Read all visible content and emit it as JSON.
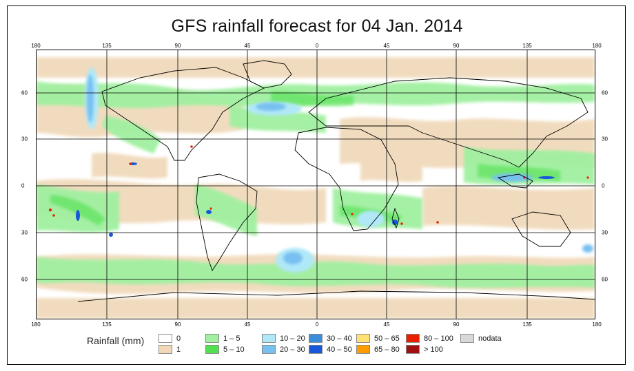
{
  "title": "GFS rainfall forecast for 04 Jan. 2014",
  "axes": {
    "lon_top": [
      "180",
      "135",
      "90",
      "45",
      "0",
      "45",
      "90",
      "135",
      "180"
    ],
    "lon_bottom": [
      "180",
      "135",
      "90",
      "45",
      "0",
      "45",
      "90",
      "135",
      "180"
    ],
    "lat_left": [
      "60",
      "30",
      "0",
      "30",
      "60"
    ],
    "lat_right": [
      "60",
      "30",
      "0",
      "30",
      "60"
    ]
  },
  "legend": {
    "title": "Rainfall (mm)",
    "items": [
      {
        "label": "0",
        "color": "#ffffff"
      },
      {
        "label": "1",
        "color": "#f0d8b8"
      },
      {
        "label": "1 – 5",
        "color": "#a0f0a0"
      },
      {
        "label": "5 – 10",
        "color": "#50e050"
      },
      {
        "label": "10 – 20",
        "color": "#b0e8f8"
      },
      {
        "label": "20 – 30",
        "color": "#78c0f0"
      },
      {
        "label": "30 – 40",
        "color": "#3c8cdc"
      },
      {
        "label": "40 – 50",
        "color": "#1858d8"
      },
      {
        "label": "50 – 65",
        "color": "#ffe070"
      },
      {
        "label": "65 – 80",
        "color": "#ff9c00"
      },
      {
        "label": "80 – 100",
        "color": "#e82000"
      },
      {
        "label": "> 100",
        "color": "#a01010"
      },
      {
        "label": "nodata",
        "color": "#d8d8d8"
      }
    ]
  }
}
